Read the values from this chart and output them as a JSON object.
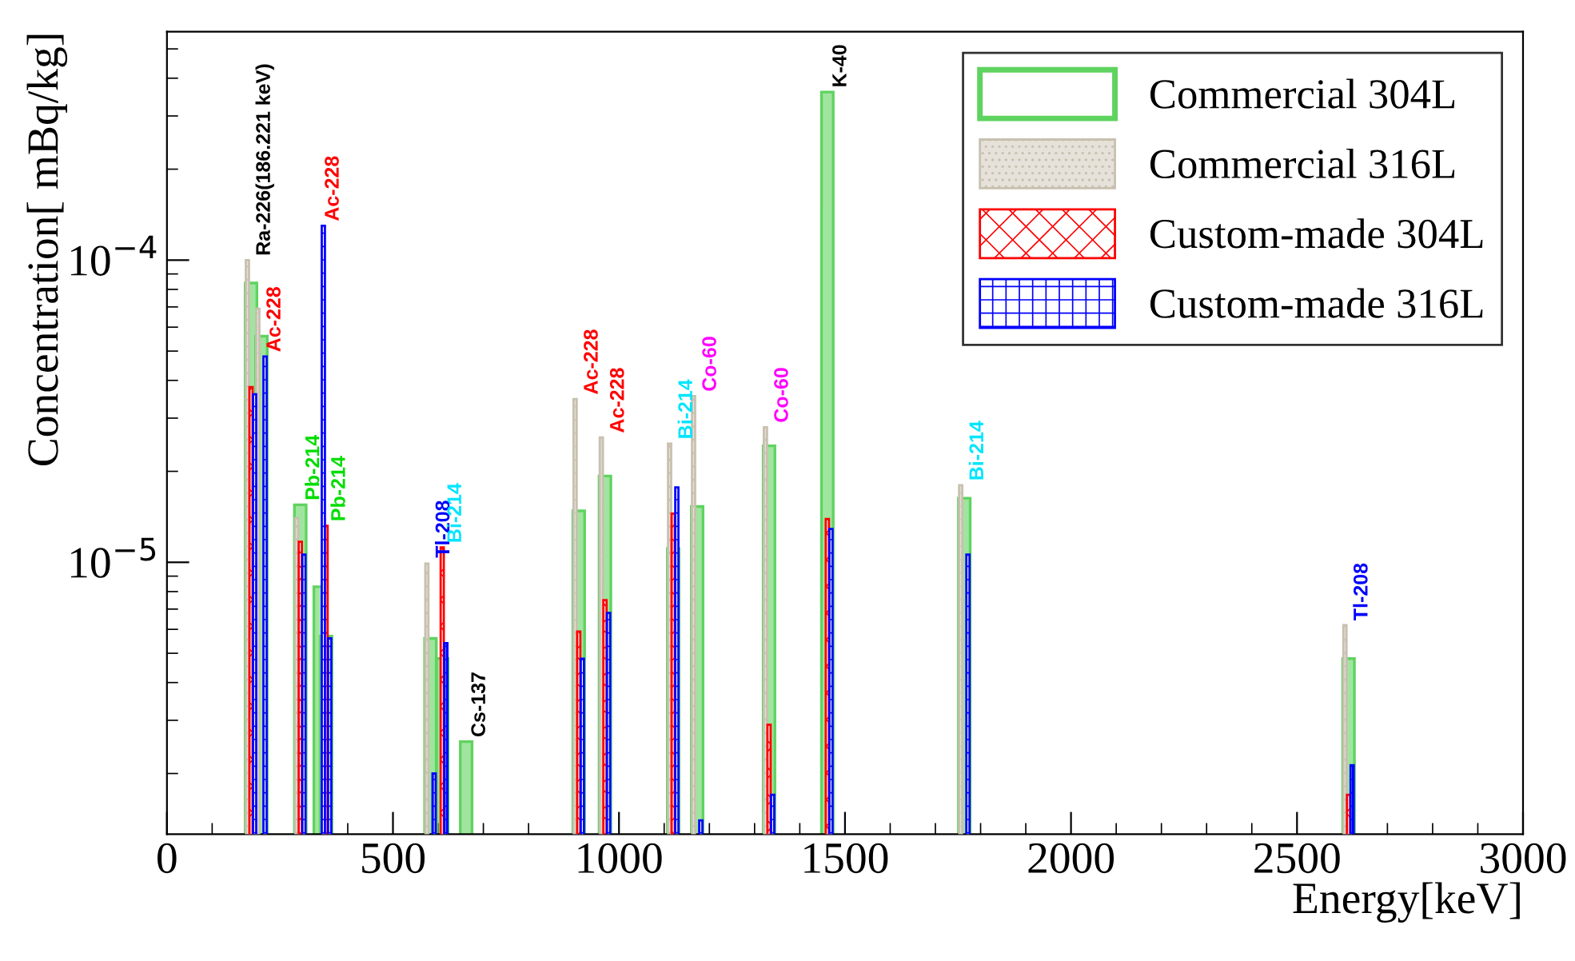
{
  "chart_data": {
    "type": "bar",
    "xlabel": "Energy[keV]",
    "ylabel": "Concentration[ mBq/kg]",
    "x": [
      186,
      209,
      295,
      338,
      352,
      583,
      609,
      662,
      911,
      969,
      1120,
      1173,
      1332,
      1461,
      1764,
      2614
    ],
    "series": [
      {
        "name": "Commercial 304L",
        "color": "#5fd35f",
        "values": [
          8.4e-05,
          5.6e-05,
          1.55e-05,
          8.3e-06,
          5.7e-06,
          5.6e-06,
          4.8e-06,
          2.55e-06,
          1.48e-05,
          1.93e-05,
          1.11e-05,
          1.53e-05,
          2.43e-05,
          0.00036,
          1.63e-05,
          4.8e-06
        ]
      },
      {
        "name": "Commercial 316L",
        "color": "#c8c0b0",
        "values": [
          0.0001,
          6.9e-05,
          1.4e-05,
          null,
          null,
          9.9e-06,
          null,
          null,
          3.47e-05,
          2.59e-05,
          2.47e-05,
          3.55e-05,
          2.8e-05,
          null,
          1.8e-05,
          6.2e-06
        ]
      },
      {
        "name": "Custom-made 304L",
        "color": "#ff0000",
        "values": [
          3.8e-05,
          null,
          1.17e-05,
          null,
          1.32e-05,
          null,
          1.12e-05,
          null,
          5.9e-06,
          7.5e-06,
          1.45e-05,
          null,
          2.9e-06,
          1.39e-05,
          null,
          1.7e-06
        ]
      },
      {
        "name": "Custom-made 316L",
        "color": "#0000ff",
        "values": [
          3.6e-05,
          4.8e-05,
          1.06e-05,
          0.00013,
          5.6e-06,
          2e-06,
          5.4e-06,
          null,
          4.8e-06,
          6.8e-06,
          1.77e-05,
          1.4e-06,
          1.7e-06,
          1.29e-05,
          1.06e-05,
          2.13e-06
        ]
      }
    ],
    "annotations": [
      {
        "text": "Ra-226(186.221 keV)",
        "x": 186,
        "y": 0.0001
      },
      {
        "text": "Ac-228",
        "x": 209,
        "y": 4.8e-05
      },
      {
        "text": "Pb-214",
        "x": 295,
        "y": 1.55e-05
      },
      {
        "text": "Ac-228",
        "x": 338,
        "y": 0.00013
      },
      {
        "text": "Pb-214",
        "x": 352,
        "y": 1.32e-05
      },
      {
        "text": "Tl-208",
        "x": 583,
        "y": 1e-05
      },
      {
        "text": "Bi-214",
        "x": 609,
        "y": 1.12e-05
      },
      {
        "text": "Cs-137",
        "x": 662,
        "y": 2.55e-06
      },
      {
        "text": "Ac-228",
        "x": 911,
        "y": 3.47e-05
      },
      {
        "text": "Ac-228",
        "x": 969,
        "y": 2.59e-05
      },
      {
        "text": "Bi-214",
        "x": 1120,
        "y": 2.47e-05
      },
      {
        "text": "Co-60",
        "x": 1173,
        "y": 3.55e-05
      },
      {
        "text": "Co-60",
        "x": 1332,
        "y": 2.8e-05
      },
      {
        "text": "K-40",
        "x": 1461,
        "y": 0.00036
      },
      {
        "text": "Bi-214",
        "x": 1764,
        "y": 1.8e-05
      },
      {
        "text": "Tl-208",
        "x": 2614,
        "y": 6.2e-06
      }
    ],
    "log": "y",
    "xlim": [
      0,
      3000
    ],
    "xticks": [
      0,
      500,
      1000,
      1500,
      2000,
      2500,
      3000
    ],
    "ylim": [
      1.26e-06,
      0.00057
    ],
    "yticks": [
      {
        "value": 0.0001,
        "label": "10$^{−4}$"
      },
      {
        "value": 1e-05,
        "label": "10$^{−5}$"
      }
    ],
    "legend": "top right",
    "grid": false
  }
}
